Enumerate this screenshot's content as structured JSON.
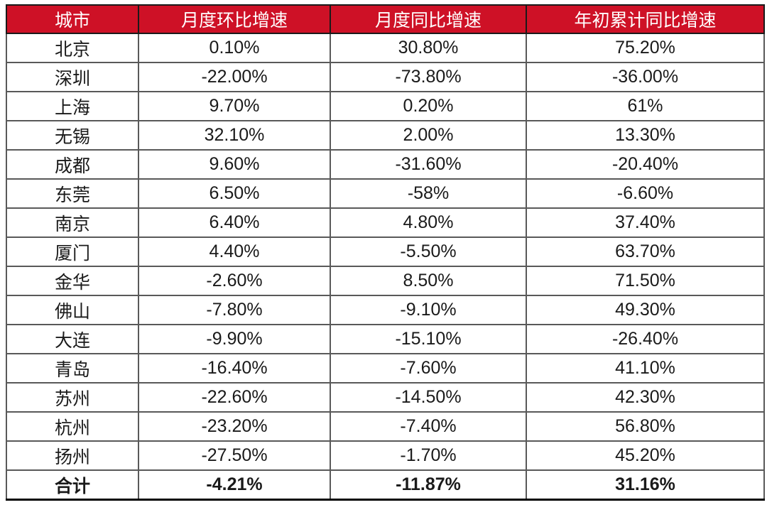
{
  "chart_data": {
    "type": "table",
    "columns": [
      "城市",
      "月度环比增速",
      "月度同比增速",
      "年初累计同比增速"
    ],
    "rows": [
      [
        "北京",
        "0.10%",
        "30.80%",
        "75.20%"
      ],
      [
        "深圳",
        "-22.00%",
        "-73.80%",
        "-36.00%"
      ],
      [
        "上海",
        "9.70%",
        "0.20%",
        "61%"
      ],
      [
        "无锡",
        "32.10%",
        "2.00%",
        "13.30%"
      ],
      [
        "成都",
        "9.60%",
        "-31.60%",
        "-20.40%"
      ],
      [
        "东莞",
        "6.50%",
        "-58%",
        "-6.60%"
      ],
      [
        "南京",
        "6.40%",
        "4.80%",
        "37.40%"
      ],
      [
        "厦门",
        "4.40%",
        "-5.50%",
        "63.70%"
      ],
      [
        "金华",
        "-2.60%",
        "8.50%",
        "71.50%"
      ],
      [
        "佛山",
        "-7.80%",
        "-9.10%",
        "49.30%"
      ],
      [
        "大连",
        "-9.90%",
        "-15.10%",
        "-26.40%"
      ],
      [
        "青岛",
        "-16.40%",
        "-7.60%",
        "41.10%"
      ],
      [
        "苏州",
        "-22.60%",
        "-14.50%",
        "42.30%"
      ],
      [
        "杭州",
        "-23.20%",
        "-7.40%",
        "56.80%"
      ],
      [
        "扬州",
        "-27.50%",
        "-1.70%",
        "45.20%"
      ]
    ],
    "total_row": [
      "合计",
      "-4.21%",
      "-11.87%",
      "31.16%"
    ]
  },
  "colors": {
    "header_bg": "#CE1126",
    "header_text": "#FFFFFF",
    "body_text": "#1A1A1A",
    "header_border": "#1A1A1A",
    "grid_border": "#595959",
    "outer_bottom_border": "#000000"
  }
}
